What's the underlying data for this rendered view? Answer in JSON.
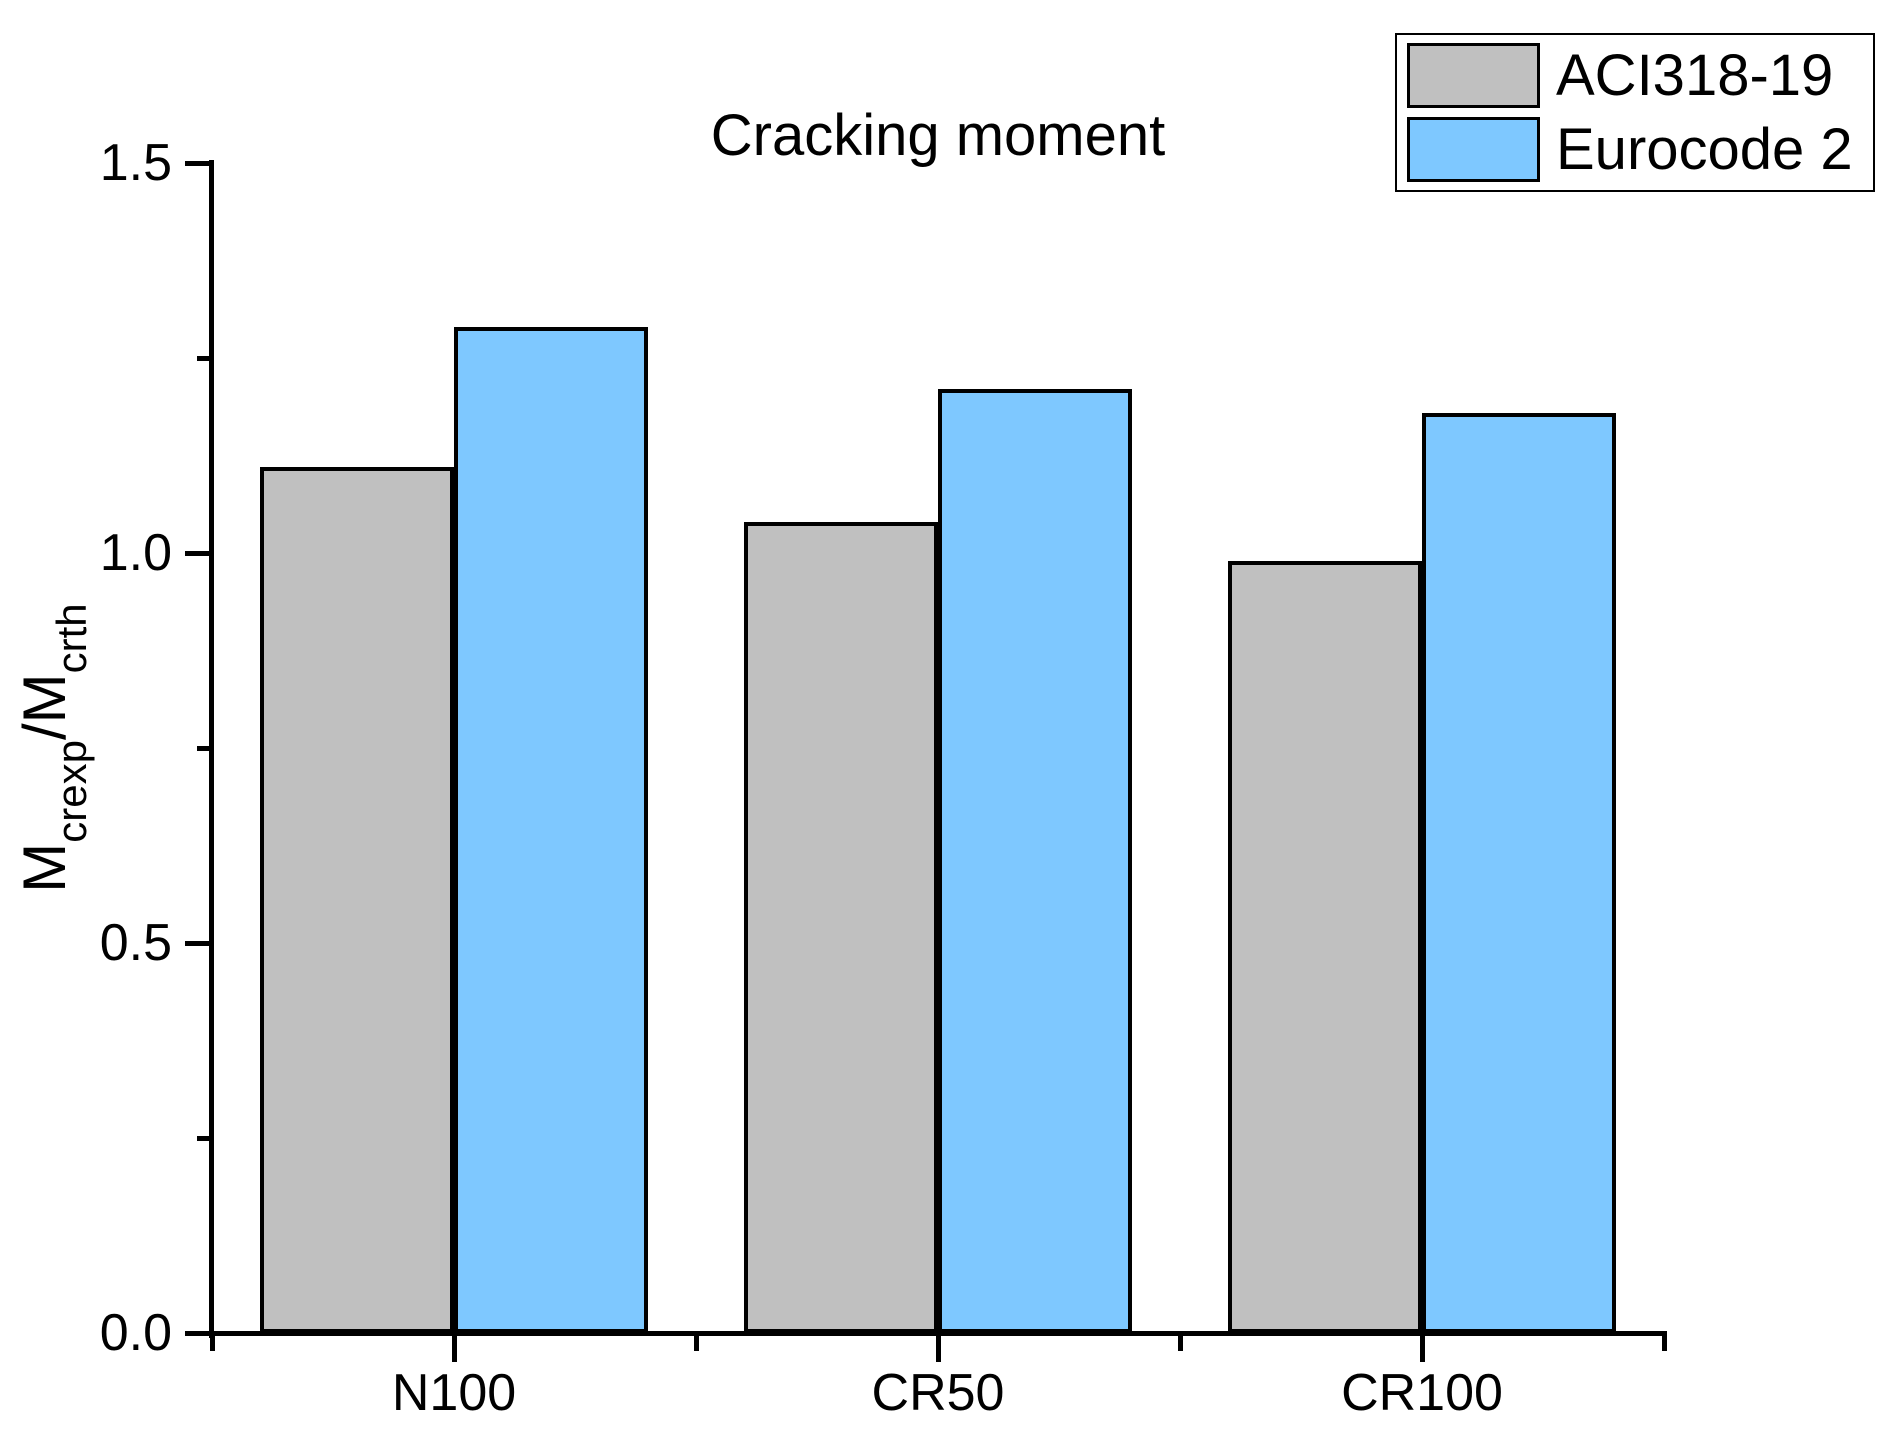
{
  "title": "Cracking moment",
  "colors": {
    "aci_gray": "#C0C0C0",
    "eurocode_blue": "#7EC8FF",
    "axis_black": "#000000",
    "background": "#FFFFFF"
  },
  "chart_data": {
    "type": "bar",
    "title": "Cracking moment",
    "categories": [
      "N100",
      "CR50",
      "CR100"
    ],
    "series": [
      {
        "name": "ACI318-19",
        "color": "#C0C0C0",
        "values": [
          1.11,
          1.04,
          0.99
        ]
      },
      {
        "name": "Eurocode 2",
        "color": "#7EC8FF",
        "values": [
          1.29,
          1.21,
          1.18
        ]
      }
    ],
    "xlabel": "",
    "ylabel_plain": "Mcrexp/Mcrth",
    "ylabel_parts": [
      {
        "text": "M",
        "sub": false
      },
      {
        "text": "crexp",
        "sub": true
      },
      {
        "text": "/M",
        "sub": false
      },
      {
        "text": "crth",
        "sub": true
      }
    ],
    "ylim": [
      0.0,
      1.5
    ],
    "y_major_ticks": [
      "0.0",
      "0.5",
      "1.0",
      "1.5"
    ],
    "y_minor_ticks": [
      0.25,
      0.75,
      1.25
    ],
    "x_minor_ticks_at_boundaries": true,
    "grid": false,
    "legend_position": "top-right-outside",
    "bar_border_color": "#000000"
  }
}
